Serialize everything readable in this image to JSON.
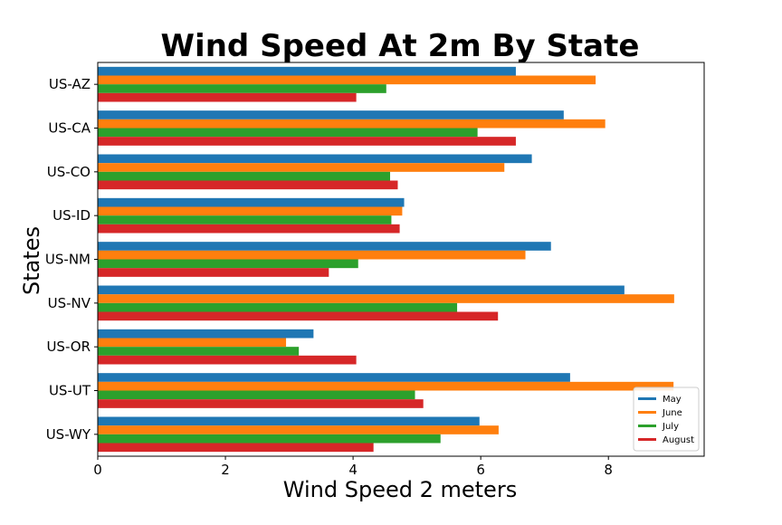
{
  "chart_data": {
    "type": "bar",
    "orientation": "horizontal",
    "title": "Wind Speed At 2m By State",
    "xlabel": "Wind Speed 2 meters",
    "ylabel": "States",
    "xlim": [
      0,
      9.5
    ],
    "xticks": [
      "0",
      "2",
      "4",
      "6",
      "8"
    ],
    "grid": false,
    "legend_position": "bottom-right",
    "categories": [
      "US-AZ",
      "US-CA",
      "US-CO",
      "US-ID",
      "US-NM",
      "US-NV",
      "US-OR",
      "US-UT",
      "US-WY"
    ],
    "series": [
      {
        "name": "May",
        "color": "#1f77b4",
        "values": [
          6.55,
          7.3,
          6.8,
          4.8,
          7.1,
          8.25,
          3.38,
          7.4,
          5.98
        ]
      },
      {
        "name": "June",
        "color": "#ff7f0e",
        "values": [
          7.8,
          7.95,
          6.37,
          4.77,
          6.7,
          9.03,
          2.95,
          9.02,
          6.28
        ]
      },
      {
        "name": "July",
        "color": "#2ca02c",
        "values": [
          4.52,
          5.95,
          4.58,
          4.6,
          4.08,
          5.63,
          3.15,
          4.97,
          5.37
        ]
      },
      {
        "name": "August",
        "color": "#d62728",
        "values": [
          4.05,
          6.55,
          4.7,
          4.73,
          3.62,
          6.27,
          4.05,
          5.1,
          4.32
        ]
      }
    ]
  }
}
